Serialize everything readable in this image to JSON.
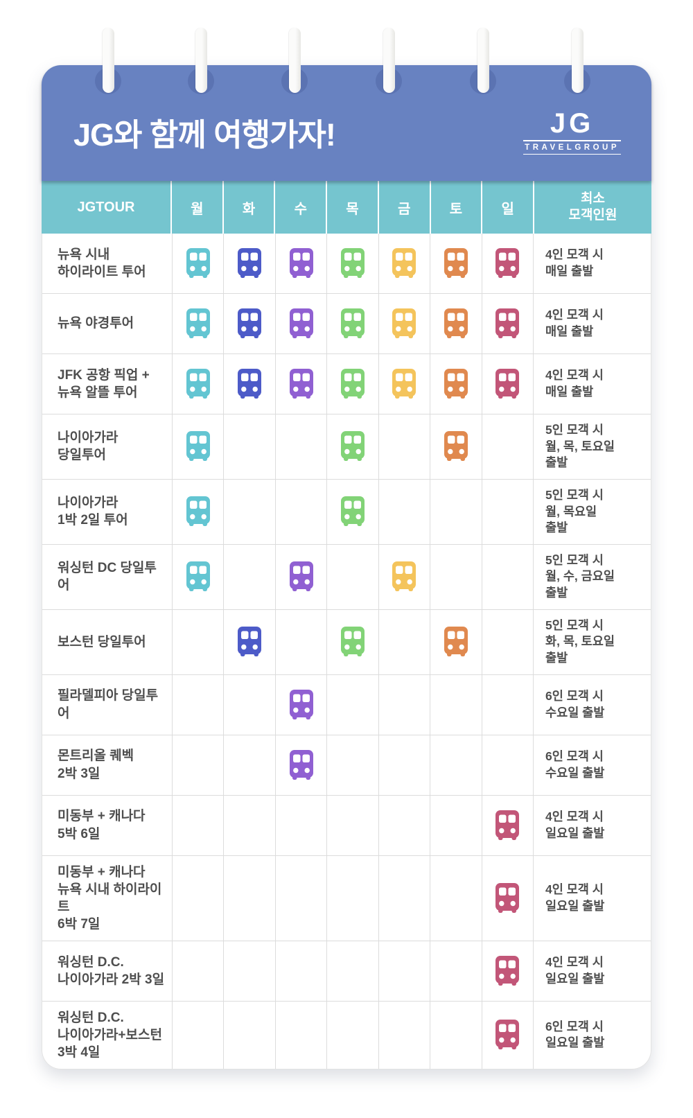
{
  "header": {
    "title": "JG와 함께 여행가자!",
    "logo": {
      "text": "JG",
      "subtext": "TRAVELGROUP"
    }
  },
  "table": {
    "tour_col_header": "JGTOUR",
    "day_headers": [
      "월",
      "화",
      "수",
      "목",
      "금",
      "토",
      "일"
    ],
    "min_col_header": "최소\n모객인원",
    "day_colors": [
      "#63C5D2",
      "#4D5BC8",
      "#9060D2",
      "#82D377",
      "#F4C45C",
      "#E0894F",
      "#C25678"
    ],
    "bus_icon_name": "bus-icon",
    "rows": [
      {
        "tour": "뉴욕 시내\n하이라이트 투어",
        "days": [
          1,
          1,
          1,
          1,
          1,
          1,
          1
        ],
        "note": "4인 모객 시\n매일 출발"
      },
      {
        "tour": "뉴욕 야경투어",
        "days": [
          1,
          1,
          1,
          1,
          1,
          1,
          1
        ],
        "note": "4인 모객 시\n매일 출발"
      },
      {
        "tour": "JFK 공항 픽업 +\n뉴욕 알뜰 투어",
        "days": [
          1,
          1,
          1,
          1,
          1,
          1,
          1
        ],
        "note": "4인 모객 시\n매일 출발"
      },
      {
        "tour": "나이아가라\n당일투어",
        "days": [
          1,
          0,
          0,
          1,
          0,
          1,
          0
        ],
        "note": "5인 모객 시\n월, 목, 토요일\n출발"
      },
      {
        "tour": "나이아가라\n1박 2일 투어",
        "days": [
          1,
          0,
          0,
          1,
          0,
          0,
          0
        ],
        "note": "5인 모객 시\n월, 목요일\n출발"
      },
      {
        "tour": "워싱턴 DC 당일투어",
        "days": [
          1,
          0,
          1,
          0,
          1,
          0,
          0
        ],
        "note": "5인 모객 시\n월, 수, 금요일\n출발"
      },
      {
        "tour": "보스턴 당일투어",
        "days": [
          0,
          1,
          0,
          1,
          0,
          1,
          0
        ],
        "note": "5인 모객 시\n화, 목, 토요일\n출발"
      },
      {
        "tour": "필라델피아 당일투어",
        "days": [
          0,
          0,
          1,
          0,
          0,
          0,
          0
        ],
        "note": "6인 모객 시\n수요일 출발"
      },
      {
        "tour": "몬트리올 퀘벡\n2박 3일",
        "days": [
          0,
          0,
          1,
          0,
          0,
          0,
          0
        ],
        "note": "6인 모객 시\n수요일 출발"
      },
      {
        "tour": "미동부 + 캐나다\n5박 6일",
        "days": [
          0,
          0,
          0,
          0,
          0,
          0,
          1
        ],
        "note": "4인 모객 시\n일요일 출발"
      },
      {
        "tour": "미동부 + 캐나다\n뉴욕 시내 하이라이트\n6박 7일",
        "days": [
          0,
          0,
          0,
          0,
          0,
          0,
          1
        ],
        "note": "4인 모객 시\n일요일 출발"
      },
      {
        "tour": "워싱턴 D.C.\n나이아가라 2박 3일",
        "days": [
          0,
          0,
          0,
          0,
          0,
          0,
          1
        ],
        "note": "4인 모객 시\n일요일 출발"
      },
      {
        "tour": "워싱턴 D.C.\n나이아가라+보스턴\n3박 4일",
        "days": [
          0,
          0,
          0,
          0,
          0,
          0,
          1
        ],
        "note": "6인 모객 시\n일요일 출발"
      }
    ]
  }
}
